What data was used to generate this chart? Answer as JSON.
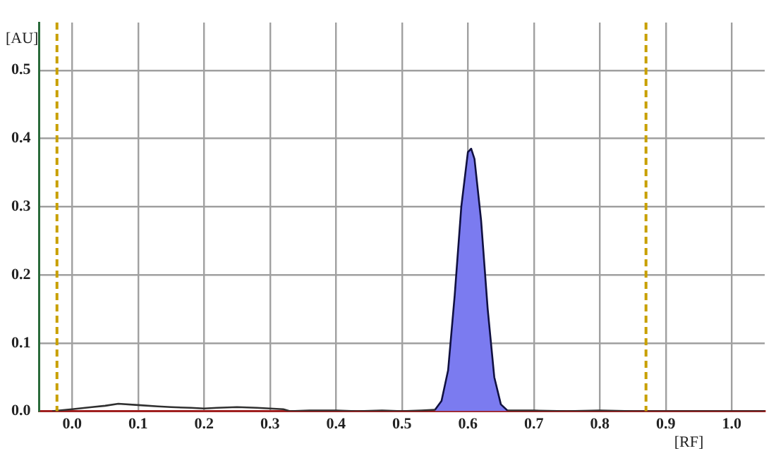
{
  "chart_data": {
    "type": "line",
    "xlabel": "[RF]",
    "ylabel": "[AU]",
    "xlim": [
      -0.05,
      1.05
    ],
    "ylim": [
      0,
      0.57
    ],
    "xticks": [
      {
        "value": 0,
        "label": "0.0"
      },
      0.1,
      0.2,
      0.3,
      0.4,
      0.5,
      0.6,
      0.7,
      0.8,
      0.9,
      {
        "value": 1,
        "label": "1.0"
      }
    ],
    "yticks": [
      {
        "value": 0,
        "label": "0.0"
      },
      0.1,
      0.2,
      0.3,
      0.4,
      0.5
    ],
    "grid": true,
    "legend": false,
    "marker": "none",
    "line_style": "solid",
    "series": [
      {
        "color": "#303030",
        "x": [
          -0.03,
          0.0,
          0.03,
          0.05,
          0.07,
          0.1,
          0.13,
          0.15,
          0.18,
          0.2,
          0.22,
          0.25,
          0.28,
          0.3,
          0.32,
          0.33,
          0.36,
          0.4,
          0.43,
          0.47,
          0.5,
          0.53,
          0.55
        ],
        "values": [
          0.0,
          0.003,
          0.006,
          0.008,
          0.011,
          0.009,
          0.007,
          0.006,
          0.005,
          0.004,
          0.005,
          0.006,
          0.005,
          0.004,
          0.003,
          0.0,
          0.001,
          0.001,
          0.0,
          0.001,
          0.0,
          0.001,
          0.002
        ]
      },
      {
        "type": "area",
        "color": "#7b7bf0",
        "x": [
          0.55,
          0.56,
          0.57,
          0.58,
          0.59,
          0.6,
          0.605,
          0.61,
          0.62,
          0.63,
          0.64,
          0.65,
          0.66
        ],
        "values": [
          0.002,
          0.015,
          0.06,
          0.17,
          0.3,
          0.38,
          0.385,
          0.37,
          0.28,
          0.15,
          0.05,
          0.01,
          0.001
        ]
      },
      {
        "color": "#303030",
        "x": [
          0.66,
          0.7,
          0.75,
          0.8,
          0.85,
          0.9,
          0.95,
          1.0,
          1.05
        ],
        "values": [
          0.001,
          0.001,
          0.0,
          0.001,
          0.0,
          0.0,
          0.0,
          0.0,
          0.0
        ]
      }
    ],
    "ref_lines": [
      {
        "axis": "x",
        "value": -0.023,
        "color": "#c8a000",
        "line_style": "dashed"
      },
      {
        "axis": "x",
        "value": 0.87,
        "color": "#c8a000",
        "line_style": "dashed"
      }
    ]
  }
}
